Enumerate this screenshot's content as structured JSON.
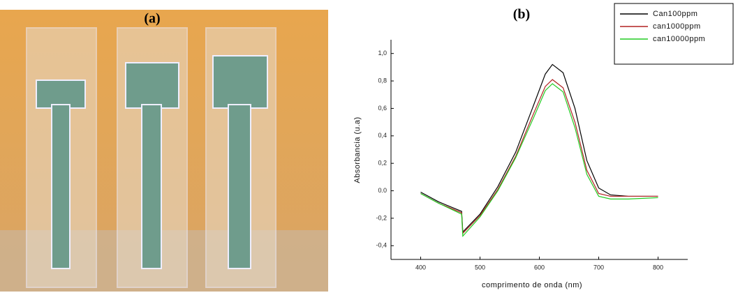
{
  "photo": {
    "label": "(a)"
  },
  "chart_data": {
    "type": "line",
    "title": "(b)",
    "x_label": "comprimento de onda (nm)",
    "y_label": "Absorbancia (u.a)",
    "x": [
      400,
      430,
      469,
      471,
      500,
      530,
      560,
      590,
      610,
      622,
      640,
      660,
      680,
      700,
      720,
      750,
      800
    ],
    "series": [
      {
        "name": "Can100ppm",
        "color": "#000000",
        "values": [
          -0.01,
          -0.08,
          -0.15,
          -0.3,
          -0.17,
          0.03,
          0.28,
          0.62,
          0.85,
          0.92,
          0.86,
          0.6,
          0.22,
          0.02,
          -0.03,
          -0.04,
          -0.04
        ]
      },
      {
        "name": "can1000ppm",
        "color": "#b22222",
        "values": [
          -0.02,
          -0.09,
          -0.16,
          -0.31,
          -0.18,
          0.01,
          0.25,
          0.56,
          0.76,
          0.81,
          0.75,
          0.5,
          0.15,
          -0.02,
          -0.04,
          -0.04,
          -0.04
        ]
      },
      {
        "name": "can10000ppm",
        "color": "#22cc22",
        "values": [
          -0.02,
          -0.09,
          -0.17,
          -0.33,
          -0.19,
          0.0,
          0.24,
          0.53,
          0.73,
          0.78,
          0.72,
          0.46,
          0.12,
          -0.04,
          -0.06,
          -0.06,
          -0.05
        ]
      }
    ],
    "xlim": [
      350,
      850
    ],
    "xticks": [
      400,
      500,
      600,
      700,
      800
    ],
    "ylim": [
      -0.5,
      1.1
    ],
    "yticks": [
      {
        "value": -0.4,
        "label": "-0,4"
      },
      {
        "value": -0.2,
        "label": "-0,2"
      },
      {
        "value": 0,
        "label": "0.0"
      },
      {
        "value": 0.2,
        "label": "0,2"
      },
      {
        "value": 0.4,
        "label": "0,4"
      },
      {
        "value": 0.6,
        "label": "0,6"
      },
      {
        "value": 0.8,
        "label": "0,8"
      },
      {
        "value": 1.0,
        "label": "1,0"
      }
    ],
    "legend": "upper right"
  }
}
